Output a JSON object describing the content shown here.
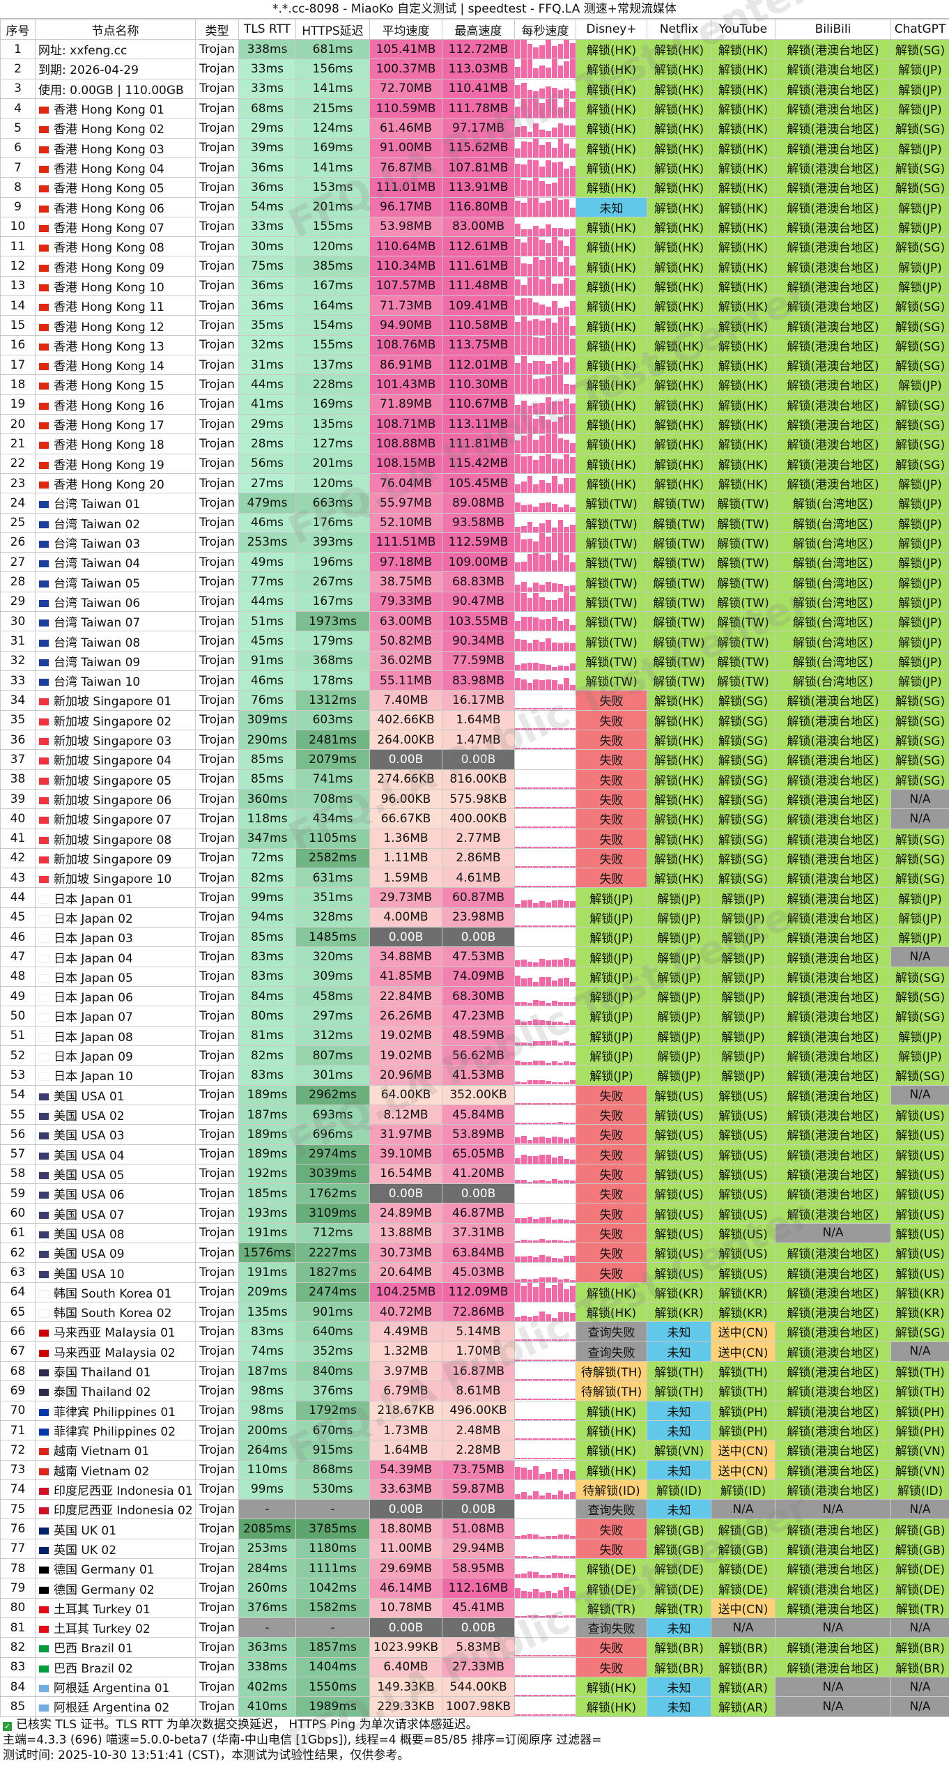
{
  "title": "*.*.cc-8098 - MiaoKo 自定义测试 | speedtest - FFQ.LA 测速+常规流媒体",
  "watermark": "FFQ.LA Public Test Center",
  "headers": [
    "序号",
    "节点名称",
    "类型",
    "TLS RTT",
    "HTTPS延迟",
    "平均速度",
    "最高速度",
    "每秒速度",
    "Disney+",
    "Netflix",
    "YouTube",
    "BiliBili",
    "ChatGPT"
  ],
  "rows": [
    [
      "1",
      "网址: xxfeng.cc",
      "Trojan",
      "338ms",
      "681ms",
      "105.41MB",
      "112.72MB",
      "",
      "解锁(HK)",
      "解锁(HK)",
      "解锁(HK)",
      "解锁(港澳台地区)",
      "解锁(SG)"
    ],
    [
      "2",
      "到期: 2026-04-29",
      "Trojan",
      "33ms",
      "156ms",
      "100.37MB",
      "113.03MB",
      "",
      "解锁(HK)",
      "解锁(HK)",
      "解锁(HK)",
      "解锁(港澳台地区)",
      "解锁(JP)"
    ],
    [
      "3",
      "使用: 0.00GB | 110.00GB",
      "Trojan",
      "33ms",
      "141ms",
      "72.70MB",
      "110.41MB",
      "",
      "解锁(HK)",
      "解锁(HK)",
      "解锁(HK)",
      "解锁(港澳台地区)",
      "解锁(JP)"
    ],
    [
      "4",
      "香港 Hong Kong 01",
      "Trojan",
      "68ms",
      "215ms",
      "110.59MB",
      "111.78MB",
      "",
      "解锁(HK)",
      "解锁(HK)",
      "解锁(HK)",
      "解锁(港澳台地区)",
      "解锁(JP)"
    ],
    [
      "5",
      "香港 Hong Kong 02",
      "Trojan",
      "29ms",
      "124ms",
      "61.46MB",
      "97.17MB",
      "",
      "解锁(HK)",
      "解锁(HK)",
      "解锁(HK)",
      "解锁(港澳台地区)",
      "解锁(SG)"
    ],
    [
      "6",
      "香港 Hong Kong 03",
      "Trojan",
      "39ms",
      "169ms",
      "91.00MB",
      "115.62MB",
      "",
      "解锁(HK)",
      "解锁(HK)",
      "解锁(HK)",
      "解锁(港澳台地区)",
      "解锁(JP)"
    ],
    [
      "7",
      "香港 Hong Kong 04",
      "Trojan",
      "36ms",
      "141ms",
      "76.87MB",
      "107.81MB",
      "",
      "解锁(HK)",
      "解锁(HK)",
      "解锁(HK)",
      "解锁(港澳台地区)",
      "解锁(SG)"
    ],
    [
      "8",
      "香港 Hong Kong 05",
      "Trojan",
      "36ms",
      "153ms",
      "111.01MB",
      "113.91MB",
      "",
      "解锁(HK)",
      "解锁(HK)",
      "解锁(HK)",
      "解锁(港澳台地区)",
      "解锁(SG)"
    ],
    [
      "9",
      "香港 Hong Kong 06",
      "Trojan",
      "54ms",
      "201ms",
      "96.17MB",
      "116.80MB",
      "",
      "未知",
      "解锁(HK)",
      "解锁(HK)",
      "解锁(港澳台地区)",
      "解锁(JP)"
    ],
    [
      "10",
      "香港 Hong Kong 07",
      "Trojan",
      "33ms",
      "155ms",
      "53.98MB",
      "83.00MB",
      "",
      "解锁(HK)",
      "解锁(HK)",
      "解锁(HK)",
      "解锁(港澳台地区)",
      "解锁(JP)"
    ],
    [
      "11",
      "香港 Hong Kong 08",
      "Trojan",
      "30ms",
      "120ms",
      "110.64MB",
      "112.61MB",
      "",
      "解锁(HK)",
      "解锁(HK)",
      "解锁(HK)",
      "解锁(港澳台地区)",
      "解锁(SG)"
    ],
    [
      "12",
      "香港 Hong Kong 09",
      "Trojan",
      "75ms",
      "385ms",
      "110.34MB",
      "111.61MB",
      "",
      "解锁(HK)",
      "解锁(HK)",
      "解锁(HK)",
      "解锁(港澳台地区)",
      "解锁(JP)"
    ],
    [
      "13",
      "香港 Hong Kong 10",
      "Trojan",
      "36ms",
      "167ms",
      "107.57MB",
      "111.48MB",
      "",
      "解锁(HK)",
      "解锁(HK)",
      "解锁(HK)",
      "解锁(港澳台地区)",
      "解锁(JP)"
    ],
    [
      "14",
      "香港 Hong Kong 11",
      "Trojan",
      "36ms",
      "164ms",
      "71.73MB",
      "109.41MB",
      "",
      "解锁(HK)",
      "解锁(HK)",
      "解锁(HK)",
      "解锁(港澳台地区)",
      "解锁(SG)"
    ],
    [
      "15",
      "香港 Hong Kong 12",
      "Trojan",
      "35ms",
      "154ms",
      "94.90MB",
      "110.58MB",
      "",
      "解锁(HK)",
      "解锁(HK)",
      "解锁(HK)",
      "解锁(港澳台地区)",
      "解锁(SG)"
    ],
    [
      "16",
      "香港 Hong Kong 13",
      "Trojan",
      "32ms",
      "155ms",
      "108.76MB",
      "113.75MB",
      "",
      "解锁(HK)",
      "解锁(HK)",
      "解锁(HK)",
      "解锁(港澳台地区)",
      "解锁(SG)"
    ],
    [
      "17",
      "香港 Hong Kong 14",
      "Trojan",
      "31ms",
      "137ms",
      "86.91MB",
      "112.01MB",
      "",
      "解锁(HK)",
      "解锁(HK)",
      "解锁(HK)",
      "解锁(港澳台地区)",
      "解锁(SG)"
    ],
    [
      "18",
      "香港 Hong Kong 15",
      "Trojan",
      "44ms",
      "228ms",
      "101.43MB",
      "110.30MB",
      "",
      "解锁(HK)",
      "解锁(HK)",
      "解锁(HK)",
      "解锁(港澳台地区)",
      "解锁(JP)"
    ],
    [
      "19",
      "香港 Hong Kong 16",
      "Trojan",
      "41ms",
      "169ms",
      "71.89MB",
      "110.67MB",
      "",
      "解锁(HK)",
      "解锁(HK)",
      "解锁(HK)",
      "解锁(港澳台地区)",
      "解锁(SG)"
    ],
    [
      "20",
      "香港 Hong Kong 17",
      "Trojan",
      "29ms",
      "135ms",
      "108.71MB",
      "113.11MB",
      "",
      "解锁(HK)",
      "解锁(HK)",
      "解锁(HK)",
      "解锁(港澳台地区)",
      "解锁(SG)"
    ],
    [
      "21",
      "香港 Hong Kong 18",
      "Trojan",
      "28ms",
      "127ms",
      "108.88MB",
      "111.81MB",
      "",
      "解锁(HK)",
      "解锁(HK)",
      "解锁(HK)",
      "解锁(港澳台地区)",
      "解锁(SG)"
    ],
    [
      "22",
      "香港 Hong Kong 19",
      "Trojan",
      "56ms",
      "201ms",
      "108.15MB",
      "115.42MB",
      "",
      "解锁(HK)",
      "解锁(HK)",
      "解锁(HK)",
      "解锁(港澳台地区)",
      "解锁(SG)"
    ],
    [
      "23",
      "香港 Hong Kong 20",
      "Trojan",
      "27ms",
      "120ms",
      "76.04MB",
      "105.45MB",
      "",
      "解锁(HK)",
      "解锁(HK)",
      "解锁(HK)",
      "解锁(港澳台地区)",
      "解锁(JP)"
    ],
    [
      "24",
      "台湾 Taiwan 01",
      "Trojan",
      "479ms",
      "663ms",
      "55.97MB",
      "89.08MB",
      "",
      "解锁(TW)",
      "解锁(TW)",
      "解锁(TW)",
      "解锁(台湾地区)",
      "解锁(JP)"
    ],
    [
      "25",
      "台湾 Taiwan 02",
      "Trojan",
      "46ms",
      "176ms",
      "52.10MB",
      "93.58MB",
      "",
      "解锁(TW)",
      "解锁(TW)",
      "解锁(TW)",
      "解锁(台湾地区)",
      "解锁(JP)"
    ],
    [
      "26",
      "台湾 Taiwan 03",
      "Trojan",
      "253ms",
      "393ms",
      "111.51MB",
      "112.59MB",
      "",
      "解锁(TW)",
      "解锁(TW)",
      "解锁(TW)",
      "解锁(台湾地区)",
      "解锁(JP)"
    ],
    [
      "27",
      "台湾 Taiwan 04",
      "Trojan",
      "49ms",
      "196ms",
      "97.18MB",
      "109.00MB",
      "",
      "解锁(TW)",
      "解锁(TW)",
      "解锁(TW)",
      "解锁(台湾地区)",
      "解锁(JP)"
    ],
    [
      "28",
      "台湾 Taiwan 05",
      "Trojan",
      "77ms",
      "267ms",
      "38.75MB",
      "68.83MB",
      "",
      "解锁(TW)",
      "解锁(TW)",
      "解锁(TW)",
      "解锁(台湾地区)",
      "解锁(JP)"
    ],
    [
      "29",
      "台湾 Taiwan 06",
      "Trojan",
      "44ms",
      "167ms",
      "79.33MB",
      "90.47MB",
      "",
      "解锁(TW)",
      "解锁(TW)",
      "解锁(TW)",
      "解锁(台湾地区)",
      "解锁(JP)"
    ],
    [
      "30",
      "台湾 Taiwan 07",
      "Trojan",
      "51ms",
      "1973ms",
      "63.00MB",
      "103.55MB",
      "",
      "解锁(TW)",
      "解锁(TW)",
      "解锁(TW)",
      "解锁(台湾地区)",
      "解锁(JP)"
    ],
    [
      "31",
      "台湾 Taiwan 08",
      "Trojan",
      "45ms",
      "179ms",
      "50.82MB",
      "90.34MB",
      "",
      "解锁(TW)",
      "解锁(TW)",
      "解锁(TW)",
      "解锁(台湾地区)",
      "解锁(JP)"
    ],
    [
      "32",
      "台湾 Taiwan 09",
      "Trojan",
      "91ms",
      "368ms",
      "36.02MB",
      "77.59MB",
      "",
      "解锁(TW)",
      "解锁(TW)",
      "解锁(TW)",
      "解锁(台湾地区)",
      "解锁(JP)"
    ],
    [
      "33",
      "台湾 Taiwan 10",
      "Trojan",
      "46ms",
      "178ms",
      "55.11MB",
      "83.98MB",
      "",
      "解锁(TW)",
      "解锁(TW)",
      "解锁(TW)",
      "解锁(台湾地区)",
      "解锁(JP)"
    ],
    [
      "34",
      "新加坡 Singapore 01",
      "Trojan",
      "76ms",
      "1312ms",
      "7.40MB",
      "16.17MB",
      "",
      "失败",
      "解锁(HK)",
      "解锁(SG)",
      "解锁(港澳台地区)",
      "解锁(SG)"
    ],
    [
      "35",
      "新加坡 Singapore 02",
      "Trojan",
      "309ms",
      "603ms",
      "402.66KB",
      "1.64MB",
      "",
      "失败",
      "解锁(HK)",
      "解锁(SG)",
      "解锁(港澳台地区)",
      "解锁(SG)"
    ],
    [
      "36",
      "新加坡 Singapore 03",
      "Trojan",
      "290ms",
      "2481ms",
      "264.00KB",
      "1.47MB",
      "",
      "失败",
      "解锁(HK)",
      "解锁(SG)",
      "解锁(港澳台地区)",
      "解锁(SG)"
    ],
    [
      "37",
      "新加坡 Singapore 04",
      "Trojan",
      "85ms",
      "2079ms",
      "0.00B",
      "0.00B",
      "",
      "失败",
      "解锁(HK)",
      "解锁(SG)",
      "解锁(港澳台地区)",
      "解锁(SG)"
    ],
    [
      "38",
      "新加坡 Singapore 05",
      "Trojan",
      "85ms",
      "741ms",
      "274.66KB",
      "816.00KB",
      "",
      "失败",
      "解锁(HK)",
      "解锁(SG)",
      "解锁(港澳台地区)",
      "解锁(SG)"
    ],
    [
      "39",
      "新加坡 Singapore 06",
      "Trojan",
      "360ms",
      "708ms",
      "96.00KB",
      "575.98KB",
      "",
      "失败",
      "解锁(HK)",
      "解锁(SG)",
      "解锁(港澳台地区)",
      "N/A"
    ],
    [
      "40",
      "新加坡 Singapore 07",
      "Trojan",
      "118ms",
      "434ms",
      "66.67KB",
      "400.00KB",
      "",
      "失败",
      "解锁(HK)",
      "解锁(SG)",
      "解锁(港澳台地区)",
      "N/A"
    ],
    [
      "41",
      "新加坡 Singapore 08",
      "Trojan",
      "347ms",
      "1105ms",
      "1.36MB",
      "2.77MB",
      "",
      "失败",
      "解锁(HK)",
      "解锁(SG)",
      "解锁(港澳台地区)",
      "解锁(SG)"
    ],
    [
      "42",
      "新加坡 Singapore 09",
      "Trojan",
      "72ms",
      "2582ms",
      "1.11MB",
      "2.86MB",
      "",
      "失败",
      "解锁(HK)",
      "解锁(SG)",
      "解锁(港澳台地区)",
      "解锁(SG)"
    ],
    [
      "43",
      "新加坡 Singapore 10",
      "Trojan",
      "82ms",
      "631ms",
      "1.59MB",
      "4.61MB",
      "",
      "失败",
      "解锁(HK)",
      "解锁(SG)",
      "解锁(港澳台地区)",
      "解锁(SG)"
    ],
    [
      "44",
      "日本 Japan 01",
      "Trojan",
      "99ms",
      "351ms",
      "29.73MB",
      "60.87MB",
      "",
      "解锁(JP)",
      "解锁(JP)",
      "解锁(JP)",
      "解锁(港澳台地区)",
      "解锁(JP)"
    ],
    [
      "45",
      "日本 Japan 02",
      "Trojan",
      "94ms",
      "328ms",
      "4.00MB",
      "23.98MB",
      "",
      "解锁(JP)",
      "解锁(JP)",
      "解锁(JP)",
      "解锁(港澳台地区)",
      "解锁(JP)"
    ],
    [
      "46",
      "日本 Japan 03",
      "Trojan",
      "85ms",
      "1485ms",
      "0.00B",
      "0.00B",
      "",
      "解锁(JP)",
      "解锁(JP)",
      "解锁(JP)",
      "解锁(港澳台地区)",
      "解锁(JP)"
    ],
    [
      "47",
      "日本 Japan 04",
      "Trojan",
      "83ms",
      "320ms",
      "34.88MB",
      "47.53MB",
      "",
      "解锁(JP)",
      "解锁(JP)",
      "解锁(JP)",
      "解锁(港澳台地区)",
      "N/A"
    ],
    [
      "48",
      "日本 Japan 05",
      "Trojan",
      "83ms",
      "309ms",
      "41.85MB",
      "74.09MB",
      "",
      "解锁(JP)",
      "解锁(JP)",
      "解锁(JP)",
      "解锁(港澳台地区)",
      "解锁(SG)"
    ],
    [
      "49",
      "日本 Japan 06",
      "Trojan",
      "84ms",
      "458ms",
      "22.84MB",
      "68.30MB",
      "",
      "解锁(JP)",
      "解锁(JP)",
      "解锁(JP)",
      "解锁(港澳台地区)",
      "解锁(SG)"
    ],
    [
      "50",
      "日本 Japan 07",
      "Trojan",
      "80ms",
      "297ms",
      "26.26MB",
      "47.23MB",
      "",
      "解锁(JP)",
      "解锁(JP)",
      "解锁(JP)",
      "解锁(港澳台地区)",
      "解锁(SG)"
    ],
    [
      "51",
      "日本 Japan 08",
      "Trojan",
      "81ms",
      "312ms",
      "19.02MB",
      "48.59MB",
      "",
      "解锁(JP)",
      "解锁(JP)",
      "解锁(JP)",
      "解锁(港澳台地区)",
      "解锁(JP)"
    ],
    [
      "52",
      "日本 Japan 09",
      "Trojan",
      "82ms",
      "807ms",
      "19.02MB",
      "56.62MB",
      "",
      "解锁(JP)",
      "解锁(JP)",
      "解锁(JP)",
      "解锁(港澳台地区)",
      "解锁(JP)"
    ],
    [
      "53",
      "日本 Japan 10",
      "Trojan",
      "83ms",
      "301ms",
      "20.96MB",
      "41.53MB",
      "",
      "解锁(JP)",
      "解锁(JP)",
      "解锁(JP)",
      "解锁(港澳台地区)",
      "解锁(SG)"
    ],
    [
      "54",
      "美国 USA 01",
      "Trojan",
      "189ms",
      "2962ms",
      "64.00KB",
      "352.00KB",
      "",
      "失败",
      "解锁(US)",
      "解锁(US)",
      "解锁(港澳台地区)",
      "N/A"
    ],
    [
      "55",
      "美国 USA 02",
      "Trojan",
      "187ms",
      "693ms",
      "8.12MB",
      "45.84MB",
      "",
      "失败",
      "解锁(US)",
      "解锁(US)",
      "解锁(港澳台地区)",
      "解锁(US)"
    ],
    [
      "56",
      "美国 USA 03",
      "Trojan",
      "189ms",
      "696ms",
      "31.97MB",
      "53.89MB",
      "",
      "失败",
      "解锁(US)",
      "解锁(US)",
      "解锁(港澳台地区)",
      "解锁(US)"
    ],
    [
      "57",
      "美国 USA 04",
      "Trojan",
      "189ms",
      "2974ms",
      "39.10MB",
      "65.05MB",
      "",
      "失败",
      "解锁(US)",
      "解锁(US)",
      "解锁(港澳台地区)",
      "解锁(US)"
    ],
    [
      "58",
      "美国 USA 05",
      "Trojan",
      "192ms",
      "3039ms",
      "16.54MB",
      "41.20MB",
      "",
      "失败",
      "解锁(US)",
      "解锁(US)",
      "解锁(港澳台地区)",
      "解锁(US)"
    ],
    [
      "59",
      "美国 USA 06",
      "Trojan",
      "185ms",
      "1762ms",
      "0.00B",
      "0.00B",
      "",
      "失败",
      "解锁(US)",
      "解锁(US)",
      "解锁(港澳台地区)",
      "解锁(US)"
    ],
    [
      "60",
      "美国 USA 07",
      "Trojan",
      "193ms",
      "3109ms",
      "24.89MB",
      "46.87MB",
      "",
      "失败",
      "解锁(US)",
      "解锁(US)",
      "解锁(港澳台地区)",
      "解锁(US)"
    ],
    [
      "61",
      "美国 USA 08",
      "Trojan",
      "191ms",
      "712ms",
      "13.88MB",
      "37.31MB",
      "",
      "失败",
      "解锁(US)",
      "解锁(US)",
      "N/A",
      "解锁(US)"
    ],
    [
      "62",
      "美国 USA 09",
      "Trojan",
      "1576ms",
      "2227ms",
      "30.73MB",
      "63.84MB",
      "",
      "失败",
      "解锁(US)",
      "解锁(US)",
      "解锁(港澳台地区)",
      "解锁(US)"
    ],
    [
      "63",
      "美国 USA 10",
      "Trojan",
      "191ms",
      "1827ms",
      "20.64MB",
      "45.03MB",
      "",
      "失败",
      "解锁(US)",
      "解锁(US)",
      "解锁(港澳台地区)",
      "解锁(US)"
    ],
    [
      "64",
      "韩国 South Korea 01",
      "Trojan",
      "209ms",
      "2474ms",
      "104.25MB",
      "112.09MB",
      "",
      "解锁(HK)",
      "解锁(KR)",
      "解锁(KR)",
      "解锁(港澳台地区)",
      "解锁(KR)"
    ],
    [
      "65",
      "韩国 South Korea 02",
      "Trojan",
      "135ms",
      "901ms",
      "40.72MB",
      "72.86MB",
      "",
      "解锁(HK)",
      "解锁(KR)",
      "解锁(KR)",
      "解锁(港澳台地区)",
      "解锁(KR)"
    ],
    [
      "66",
      "马来西亚 Malaysia 01",
      "Trojan",
      "83ms",
      "640ms",
      "4.49MB",
      "5.14MB",
      "",
      "查询失败",
      "未知",
      "送中(CN)",
      "解锁(港澳台地区)",
      "解锁(SG)"
    ],
    [
      "67",
      "马来西亚 Malaysia 02",
      "Trojan",
      "74ms",
      "352ms",
      "1.32MB",
      "1.70MB",
      "",
      "查询失败",
      "未知",
      "送中(CN)",
      "解锁(港澳台地区)",
      "N/A"
    ],
    [
      "68",
      "泰国 Thailand 01",
      "Trojan",
      "187ms",
      "840ms",
      "3.97MB",
      "16.87MB",
      "",
      "待解锁(TH)",
      "解锁(TH)",
      "解锁(TH)",
      "解锁(港澳台地区)",
      "解锁(TH)"
    ],
    [
      "69",
      "泰国 Thailand 02",
      "Trojan",
      "98ms",
      "376ms",
      "6.79MB",
      "8.61MB",
      "",
      "待解锁(TH)",
      "解锁(TH)",
      "解锁(TH)",
      "解锁(港澳台地区)",
      "解锁(TH)"
    ],
    [
      "70",
      "菲律宾 Philippines 01",
      "Trojan",
      "98ms",
      "1792ms",
      "218.67KB",
      "496.00KB",
      "",
      "解锁(HK)",
      "未知",
      "解锁(PH)",
      "解锁(港澳台地区)",
      "解锁(PH)"
    ],
    [
      "71",
      "菲律宾 Philippines 02",
      "Trojan",
      "200ms",
      "670ms",
      "1.73MB",
      "2.48MB",
      "",
      "解锁(HK)",
      "未知",
      "解锁(PH)",
      "解锁(港澳台地区)",
      "解锁(PH)"
    ],
    [
      "72",
      "越南 Vietnam 01",
      "Trojan",
      "264ms",
      "915ms",
      "1.64MB",
      "2.28MB",
      "",
      "解锁(HK)",
      "解锁(VN)",
      "送中(CN)",
      "解锁(港澳台地区)",
      "解锁(VN)"
    ],
    [
      "73",
      "越南 Vietnam 02",
      "Trojan",
      "110ms",
      "868ms",
      "54.39MB",
      "73.75MB",
      "",
      "解锁(HK)",
      "未知",
      "送中(CN)",
      "解锁(港澳台地区)",
      "解锁(VN)"
    ],
    [
      "74",
      "印度尼西亚 Indonesia 01",
      "Trojan",
      "99ms",
      "530ms",
      "33.63MB",
      "59.87MB",
      "",
      "待解锁(ID)",
      "解锁(ID)",
      "解锁(ID)",
      "解锁(港澳台地区)",
      "解锁(ID)"
    ],
    [
      "75",
      "印度尼西亚 Indonesia 02",
      "Trojan",
      "-",
      "-",
      "0.00B",
      "0.00B",
      "",
      "查询失败",
      "未知",
      "N/A",
      "N/A",
      "N/A"
    ],
    [
      "76",
      "英国 UK 01",
      "Trojan",
      "2085ms",
      "3785ms",
      "18.80MB",
      "51.08MB",
      "",
      "失败",
      "解锁(GB)",
      "解锁(GB)",
      "解锁(港澳台地区)",
      "解锁(GB)"
    ],
    [
      "77",
      "英国 UK 02",
      "Trojan",
      "253ms",
      "1180ms",
      "11.00MB",
      "29.94MB",
      "",
      "失败",
      "解锁(GB)",
      "解锁(GB)",
      "解锁(港澳台地区)",
      "解锁(GB)"
    ],
    [
      "78",
      "德国 Germany 01",
      "Trojan",
      "284ms",
      "1111ms",
      "29.69MB",
      "58.95MB",
      "",
      "解锁(DE)",
      "解锁(DE)",
      "解锁(DE)",
      "解锁(港澳台地区)",
      "解锁(DE)"
    ],
    [
      "79",
      "德国 Germany 02",
      "Trojan",
      "260ms",
      "1042ms",
      "46.14MB",
      "112.16MB",
      "",
      "解锁(DE)",
      "解锁(DE)",
      "解锁(DE)",
      "解锁(港澳台地区)",
      "解锁(DE)"
    ],
    [
      "80",
      "土耳其 Turkey 01",
      "Trojan",
      "376ms",
      "1582ms",
      "10.78MB",
      "45.41MB",
      "",
      "解锁(TR)",
      "解锁(TR)",
      "送中(CN)",
      "解锁(港澳台地区)",
      "解锁(TR)"
    ],
    [
      "81",
      "土耳其 Turkey 02",
      "Trojan",
      "-",
      "-",
      "0.00B",
      "0.00B",
      "",
      "查询失败",
      "未知",
      "N/A",
      "N/A",
      "N/A"
    ],
    [
      "82",
      "巴西 Brazil 01",
      "Trojan",
      "363ms",
      "1857ms",
      "1023.99KB",
      "5.83MB",
      "",
      "失败",
      "解锁(BR)",
      "解锁(BR)",
      "解锁(港澳台地区)",
      "解锁(BR)"
    ],
    [
      "83",
      "巴西 Brazil 02",
      "Trojan",
      "338ms",
      "1404ms",
      "6.40MB",
      "27.33MB",
      "",
      "失败",
      "解锁(BR)",
      "解锁(BR)",
      "解锁(港澳台地区)",
      "解锁(BR)"
    ],
    [
      "84",
      "阿根廷 Argentina 01",
      "Trojan",
      "402ms",
      "1550ms",
      "149.33KB",
      "544.00KB",
      "",
      "解锁(HK)",
      "未知",
      "解锁(AR)",
      "N/A",
      "N/A"
    ],
    [
      "85",
      "阿根廷 Argentina 02",
      "Trojan",
      "410ms",
      "1989ms",
      "229.33KB",
      "1007.98KB",
      "",
      "解锁(HK)",
      "未知",
      "解锁(AR)",
      "N/A",
      "N/A"
    ]
  ],
  "footer": {
    "line1": "已核实 TLS 证书。TLS RTT 为单次数据交换延迟， HTTPS Ping 为单次请求体感延迟。",
    "line2": "主端=4.3.3 (696) 喵速=5.0.0-beta7 (华南-中山电信 [1Gbps]), 线程=4 概要=85/85 排序=订阅原序 过滤器=",
    "line3": "测试时间:  2025-10-30 13:51:41 (CST)，本测试为试验性结果，仅供参考。"
  },
  "colors": {
    "unlock": "#a8e063",
    "fail": "#f2787b",
    "unknown": "#62c8ea",
    "pending": "#ffd27a",
    "na": "#9a9a9a",
    "speed_high": "#f06aa8",
    "speed_low": "#fde0d2",
    "speed_zero": "#6e6e6e",
    "rtt_light": "#b9f2d4",
    "rtt_dark": "#5ea56e"
  }
}
